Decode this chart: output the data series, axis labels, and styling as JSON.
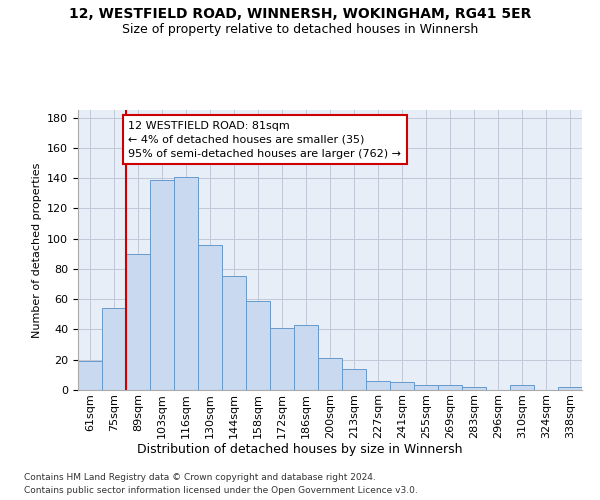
{
  "title1": "12, WESTFIELD ROAD, WINNERSH, WOKINGHAM, RG41 5ER",
  "title2": "Size of property relative to detached houses in Winnersh",
  "xlabel": "Distribution of detached houses by size in Winnersh",
  "ylabel": "Number of detached properties",
  "categories": [
    "61sqm",
    "75sqm",
    "89sqm",
    "103sqm",
    "116sqm",
    "130sqm",
    "144sqm",
    "158sqm",
    "172sqm",
    "186sqm",
    "200sqm",
    "213sqm",
    "227sqm",
    "241sqm",
    "255sqm",
    "269sqm",
    "283sqm",
    "296sqm",
    "310sqm",
    "324sqm",
    "338sqm"
  ],
  "values": [
    19,
    54,
    90,
    139,
    141,
    96,
    75,
    59,
    41,
    43,
    21,
    14,
    6,
    5,
    3,
    3,
    2,
    0,
    3,
    0,
    2
  ],
  "bar_color": "#c8d9f0",
  "bar_edge_color": "#6699cc",
  "red_line_color": "#cc0000",
  "red_line_x": 1.5,
  "annotation_line1": "12 WESTFIELD ROAD: 81sqm",
  "annotation_line2": "← 4% of detached houses are smaller (35)",
  "annotation_line3": "95% of semi-detached houses are larger (762) →",
  "annotation_box_facecolor": "#ffffff",
  "annotation_box_edgecolor": "#cc0000",
  "ylim": [
    0,
    185
  ],
  "yticks": [
    0,
    20,
    40,
    60,
    80,
    100,
    120,
    140,
    160,
    180
  ],
  "background_color": "#e8eef8",
  "grid_color": "#c0c8d8",
  "title1_fontsize": 10,
  "title2_fontsize": 9,
  "xlabel_fontsize": 9,
  "ylabel_fontsize": 8,
  "tick_fontsize": 8,
  "footer1": "Contains HM Land Registry data © Crown copyright and database right 2024.",
  "footer2": "Contains public sector information licensed under the Open Government Licence v3.0.",
  "footer_fontsize": 6.5
}
